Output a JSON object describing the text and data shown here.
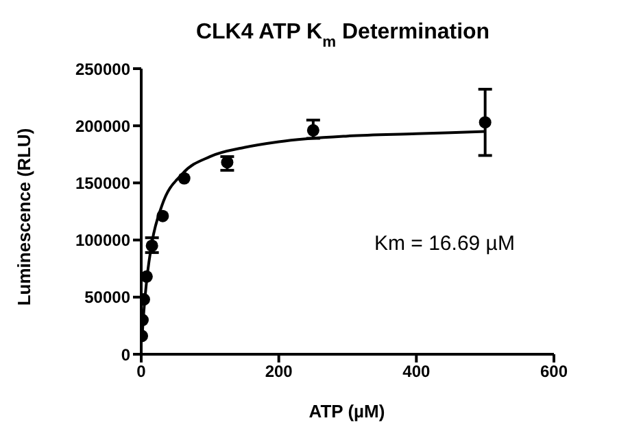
{
  "chart_data": {
    "type": "scatter",
    "title": "CLK4 ATP K$_{m}$ Determination",
    "xlabel": "ATP (µM)",
    "ylabel": "Luminescence (RLU)",
    "annotations": [
      "Km = 16.69 µM"
    ],
    "xlim": [
      0,
      600
    ],
    "xticks": [
      0,
      200,
      400,
      600
    ],
    "ylim": [
      0,
      250000
    ],
    "yticks": [
      0,
      50000,
      100000,
      150000,
      200000,
      250000
    ],
    "grid": false,
    "marker": "circle",
    "series": [
      {
        "color": "#000000",
        "x": [
          0.98,
          1.95,
          3.9,
          7.8,
          15.6,
          31.25,
          62.5,
          125,
          250,
          500
        ],
        "values": [
          16000,
          30000,
          48000,
          68000,
          95000,
          121000,
          154000,
          168000,
          196000,
          203000
        ],
        "errors": [
          null,
          null,
          null,
          null,
          [
            89000,
            102000
          ],
          null,
          null,
          [
            161000,
            173000
          ],
          [
            189000,
            205000
          ],
          [
            174000,
            232000
          ]
        ]
      },
      {
        "type": "line",
        "color": "#000000",
        "marker": "none",
        "x": [
          1,
          2,
          4,
          8,
          16,
          30,
          60,
          100,
          150,
          200,
          300,
          400,
          500
        ],
        "values": [
          11000,
          22000,
          39000,
          65000,
          99000,
          130000,
          158000,
          173000,
          181000,
          186000,
          191000,
          193000,
          195000
        ]
      }
    ]
  }
}
